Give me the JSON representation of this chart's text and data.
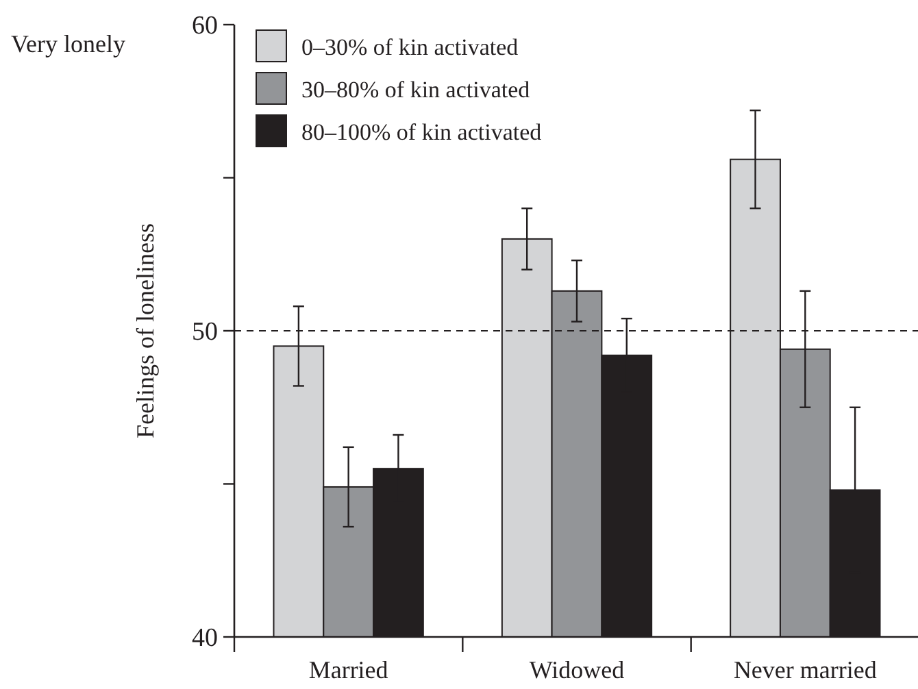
{
  "chart_data": {
    "type": "bar",
    "categories": [
      "Married",
      "Widowed",
      "Never married"
    ],
    "ylabel": "Feelings of loneliness",
    "annotations": [
      "Very lonely"
    ],
    "ylim": [
      40,
      60
    ],
    "yticks": [
      40,
      {
        "value": 45,
        "label": null
      },
      50,
      {
        "value": 55,
        "label": null
      },
      60
    ],
    "series": [
      {
        "name": "0–30% of kin activated",
        "color": "#d3d4d6",
        "values": [
          49.5,
          53.0,
          55.6
        ],
        "errors": [
          1.3,
          1.0,
          1.6
        ]
      },
      {
        "name": "30–80% of kin activated",
        "color": "#939598",
        "values": [
          44.9,
          51.3,
          49.4
        ],
        "errors": [
          1.3,
          1.0,
          1.9
        ]
      },
      {
        "name": "80–100% of kin activated",
        "color": "#231f20",
        "values": [
          45.5,
          49.2,
          44.8
        ],
        "errors": [
          1.1,
          1.2,
          2.7
        ]
      }
    ],
    "ref_lines": [
      {
        "axis": "y",
        "value": 50,
        "line_style": "dashed"
      }
    ],
    "legend": "top left",
    "grid": false
  }
}
